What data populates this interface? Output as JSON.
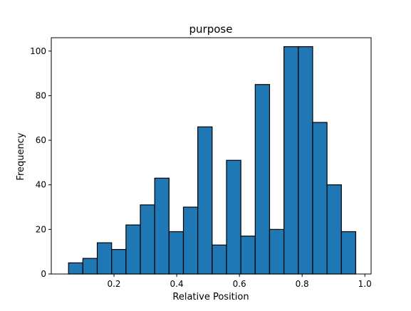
{
  "chart_data": {
    "type": "bar",
    "title": "purpose",
    "xlabel": "Relative Position",
    "ylabel": "Frequency",
    "xlim": [
      0.0,
      1.02
    ],
    "ylim": [
      0,
      106
    ],
    "xticks": [
      0.2,
      0.4,
      0.6,
      0.8,
      1.0
    ],
    "xtick_labels": [
      "0.2",
      "0.4",
      "0.6",
      "0.8",
      "1.0"
    ],
    "yticks": [
      0,
      20,
      40,
      60,
      80,
      100
    ],
    "ytick_labels": [
      "0",
      "20",
      "40",
      "60",
      "80",
      "100"
    ],
    "bin_edges": [
      0.055,
      0.1008,
      0.1466,
      0.1924,
      0.2382,
      0.284,
      0.3298,
      0.3756,
      0.4214,
      0.4672,
      0.513,
      0.5588,
      0.6046,
      0.6504,
      0.6962,
      0.742,
      0.7878,
      0.8336,
      0.8794,
      0.9252,
      0.971
    ],
    "values": [
      5,
      7,
      14,
      11,
      22,
      31,
      43,
      19,
      30,
      66,
      13,
      51,
      17,
      85,
      20,
      102,
      102,
      68,
      40,
      19
    ],
    "grid": false,
    "colors": {
      "bar_fill": "#1f77b4",
      "bar_edge": "#000000"
    }
  }
}
